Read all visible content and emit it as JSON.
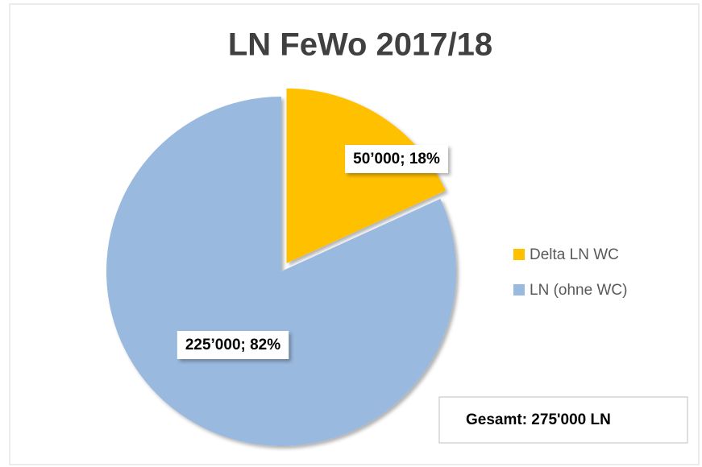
{
  "chart_data": {
    "type": "pie",
    "title": "LN FeWo 2017/18",
    "categories": [
      "Delta LN WC",
      "LN (ohne WC)"
    ],
    "values": [
      50000,
      225000
    ],
    "value_labels": [
      "50’000; 18%",
      "225’000; 82%"
    ],
    "colors": [
      "#ffc000",
      "#9ab9de"
    ],
    "legend": "right",
    "annotation": "Gesamt: 275'000 LN"
  }
}
